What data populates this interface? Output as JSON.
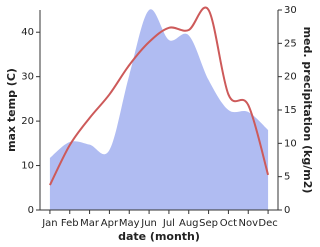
{
  "chart_data": {
    "type": "combo",
    "x_label": "date (month)",
    "y_label": "max temp (C)",
    "y2_label": "med. precipitation (kg/m2)",
    "categories": [
      "Jan",
      "Feb",
      "Mar",
      "Apr",
      "May",
      "Jun",
      "Jul",
      "Aug",
      "Sep",
      "Oct",
      "Nov",
      "Dec"
    ],
    "series": [
      {
        "type": "area",
        "axis": "y2",
        "color": "#b0bcf2",
        "values": [
          7.8,
          10.2,
          9.8,
          9,
          20.2,
          30,
          25.5,
          26.2,
          19.5,
          15,
          14.7,
          12
        ]
      },
      {
        "type": "line",
        "color": "#cd5a5a",
        "values": [
          5.6,
          14.6,
          20.7,
          26,
          32.6,
          37.8,
          41,
          40.5,
          45,
          26,
          23.6,
          7.9
        ]
      }
    ],
    "ylim": [
      0,
      45
    ],
    "yticks": [
      0,
      10,
      20,
      30,
      40
    ],
    "y2lim": [
      0,
      30
    ],
    "y2ticks": [
      0,
      5,
      10,
      15,
      20,
      25,
      30
    ]
  }
}
